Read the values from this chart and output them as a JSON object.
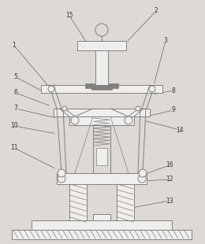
{
  "bg_color": "#ddd9d4",
  "lc": "#808080",
  "lc2": "#999999",
  "white": "#f0eeec",
  "hatch_color": "#909090",
  "figsize": [
    2.6,
    3.1
  ],
  "dpi": 100
}
